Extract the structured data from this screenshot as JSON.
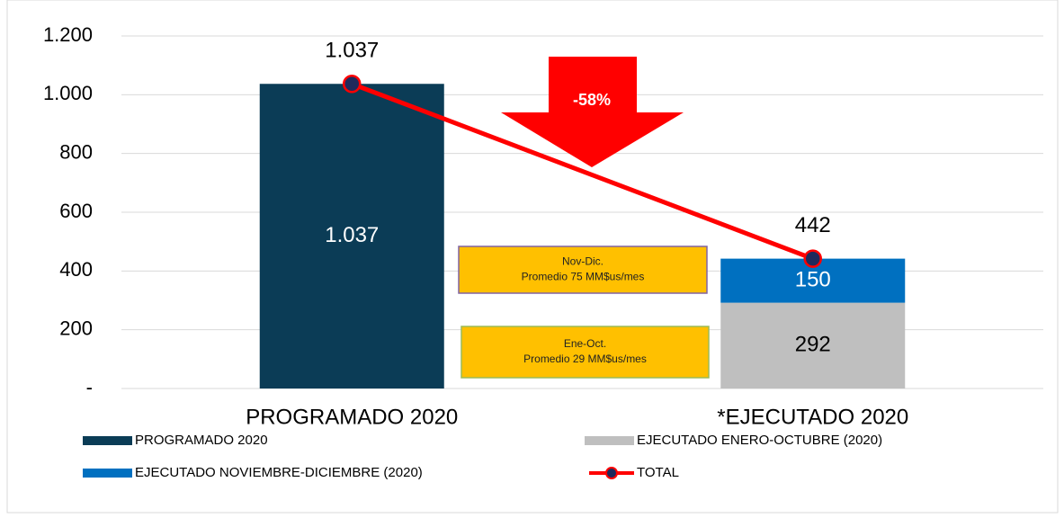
{
  "chart_data": {
    "type": "bar",
    "stacked": true,
    "categories": [
      "PROGRAMADO 2020",
      "*EJECUTADO 2020"
    ],
    "series": [
      {
        "name": "PROGRAMADO 2020",
        "color": "#0b3c56",
        "values": [
          1037,
          null
        ],
        "value_labels": [
          "1.037",
          null
        ]
      },
      {
        "name": "EJECUTADO ENERO-OCTUBRE (2020)",
        "color": "#bfbfbf",
        "values": [
          null,
          292
        ]
      },
      {
        "name": "EJECUTADO NOVIEMBRE-DICIEMBRE (2020)",
        "color": "#0070c0",
        "values": [
          null,
          150
        ]
      },
      {
        "name": "TOTAL",
        "type": "line",
        "color": "#ff0000",
        "marker_color": "#1f2a5c",
        "values": [
          1037,
          442
        ],
        "value_labels": [
          "1.037",
          "442"
        ]
      }
    ],
    "ylim": [
      0,
      1200
    ],
    "yticks": [
      {
        "value": 0,
        "label": "-"
      },
      200,
      400,
      600,
      800,
      {
        "value": 1000,
        "label": "1.000"
      },
      {
        "value": 1200,
        "label": "1.200"
      }
    ],
    "grid": true,
    "annotations": [
      {
        "text": "-58%"
      },
      {
        "lines": [
          "Nov-Dic.",
          "Promedio 75 MM$us/mes"
        ]
      },
      {
        "lines": [
          "Ene-Oct.",
          "Promedio 29 MM$us/mes"
        ]
      }
    ]
  }
}
